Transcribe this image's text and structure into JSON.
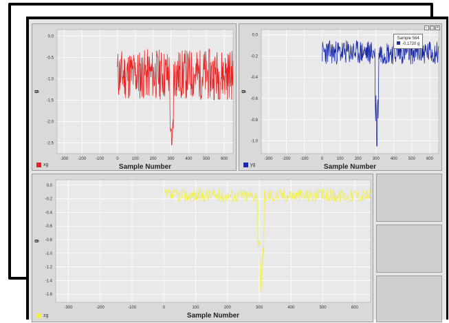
{
  "colors": {
    "x": "#e62222",
    "y": "#1a2aa8",
    "z": "#f2ee3a",
    "plot_bg": "#e9e9e9",
    "grid": "#ffffff"
  },
  "charts": [
    {
      "id": "x",
      "ylabel": "g",
      "xlabel": "Sample Number",
      "legend": "xg",
      "xticks": [
        "-300",
        "-200",
        "-100",
        "0",
        "100",
        "200",
        "300",
        "400",
        "500",
        "600"
      ],
      "yticks": [
        "0.0",
        "-0.5",
        "-1.0",
        "-1.5",
        "-2.0",
        "-2.5"
      ]
    },
    {
      "id": "y",
      "ylabel": "g",
      "xlabel": "Sample Number",
      "legend": "yg",
      "xticks": [
        "-300",
        "-200",
        "-100",
        "0",
        "100",
        "200",
        "300",
        "400",
        "500",
        "600"
      ],
      "yticks": [
        "0.0",
        "-0.2",
        "-0.4",
        "-0.6",
        "-0.8",
        "-1.0"
      ]
    },
    {
      "id": "z",
      "ylabel": "g",
      "xlabel": "Sample Number",
      "legend": "zg",
      "xticks": [
        "-300",
        "-200",
        "-100",
        "0",
        "100",
        "200",
        "300",
        "400",
        "500",
        "600"
      ],
      "yticks": [
        "0.0",
        "-0.2",
        "-0.4",
        "-0.6",
        "-0.8",
        "-1.0",
        "-1.2",
        "-1.4",
        "-1.6"
      ]
    }
  ],
  "tooltip": {
    "line1": "Sample 564",
    "line2": "-0.1720 g"
  },
  "chart_data": [
    {
      "type": "line",
      "series": [
        {
          "name": "xg",
          "x_range": [
            0,
            650
          ],
          "baseline_range": [
            -1.5,
            -0.3
          ],
          "spike": {
            "x": 305,
            "y": -2.55
          }
        }
      ],
      "xlim": [
        -340,
        650
      ],
      "ylim": [
        -2.75,
        0.15
      ],
      "xlabel": "Sample Number",
      "ylabel": "g",
      "grid": true,
      "legend": "bottom-left"
    },
    {
      "type": "line",
      "series": [
        {
          "name": "yg",
          "x_range": [
            0,
            650
          ],
          "baseline_range": [
            -0.28,
            -0.05
          ],
          "spike": {
            "x": 305,
            "y": -1.05
          }
        }
      ],
      "xlim": [
        -340,
        650
      ],
      "ylim": [
        -1.12,
        0.05
      ],
      "xlabel": "Sample Number",
      "ylabel": "g",
      "grid": true,
      "legend": "bottom-left"
    },
    {
      "type": "line",
      "series": [
        {
          "name": "zg",
          "x_range": [
            0,
            650
          ],
          "baseline_range": [
            -0.25,
            -0.05
          ],
          "spike": {
            "x": 305,
            "y": -1.55
          }
        }
      ],
      "xlim": [
        -340,
        650
      ],
      "ylim": [
        -1.72,
        0.08
      ],
      "xlabel": "Sample Number",
      "ylabel": "g",
      "grid": true,
      "legend": "bottom-left"
    }
  ]
}
